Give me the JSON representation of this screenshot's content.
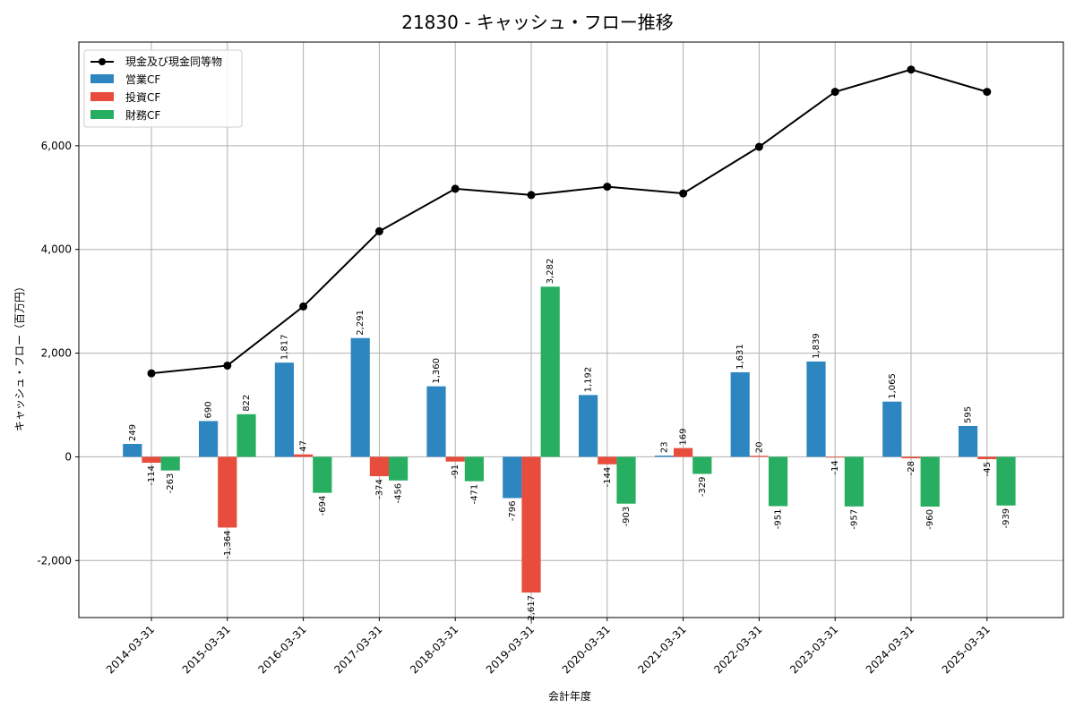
{
  "chart_data": {
    "type": "bar",
    "title": "21830 - キャッシュ・フロー推移",
    "xlabel": "会計年度",
    "ylabel": "キャッシュ・フロー（百万円）",
    "ylim": [
      -3100,
      8000
    ],
    "yticks": [
      -2000,
      0,
      2000,
      4000,
      6000
    ],
    "ytick_labels": [
      "-2,000",
      "0",
      "2,000",
      "4,000",
      "6,000"
    ],
    "grid": true,
    "legend_position": "top-left",
    "categories": [
      "2014-03-31",
      "2015-03-31",
      "2016-03-31",
      "2017-03-31",
      "2018-03-31",
      "2019-03-31",
      "2020-03-31",
      "2021-03-31",
      "2022-03-31",
      "2023-03-31",
      "2024-03-31",
      "2025-03-31"
    ],
    "series": [
      {
        "name": "営業CF",
        "color": "#2e86c1",
        "values": [
          249,
          690,
          1817,
          2291,
          1360,
          -796,
          1192,
          23,
          1631,
          1839,
          1065,
          595
        ],
        "labels": [
          "249",
          "690",
          "1,817",
          "2,291",
          "1,360",
          "-796",
          "1,192",
          "23",
          "1,631",
          "1,839",
          "1,065",
          "595"
        ]
      },
      {
        "name": "投資CF",
        "color": "#e74c3c",
        "values": [
          -114,
          -1364,
          47,
          -374,
          -91,
          -2617,
          -144,
          169,
          20,
          -14,
          -28,
          -45
        ],
        "labels": [
          "-114",
          "-1,364",
          "47",
          "-374",
          "-91",
          "-2,617",
          "-144",
          "169",
          "20",
          "-14",
          "-28",
          "-45"
        ]
      },
      {
        "name": "財務CF",
        "color": "#27ae60",
        "values": [
          -263,
          822,
          -694,
          -456,
          -471,
          3282,
          -903,
          -329,
          -951,
          -957,
          -960,
          -939
        ],
        "labels": [
          "-263",
          "822",
          "-694",
          "-456",
          "-471",
          "3,282",
          "-903",
          "-329",
          "-951",
          "-957",
          "-960",
          "-939"
        ]
      }
    ],
    "line_series": {
      "name": "現金及び現金同等物",
      "color": "#000000",
      "values": [
        1610,
        1760,
        2900,
        4350,
        5170,
        5050,
        5210,
        5080,
        5980,
        7040,
        7470,
        7040
      ]
    }
  }
}
